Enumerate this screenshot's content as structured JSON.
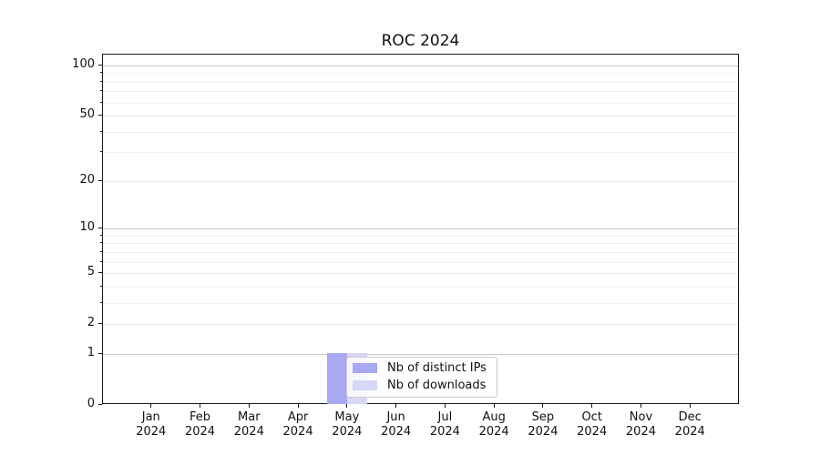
{
  "chart_data": {
    "type": "bar",
    "title": "ROC 2024",
    "categories": [
      "Jan",
      "Feb",
      "Mar",
      "Apr",
      "May",
      "Jun",
      "Jul",
      "Aug",
      "Sep",
      "Oct",
      "Nov",
      "Dec"
    ],
    "x_tick_year": "2024",
    "series": [
      {
        "name": "Nb of distinct IPs",
        "color": "#a9a9f2",
        "values": [
          0,
          0,
          0,
          0,
          1,
          0,
          0,
          0,
          0,
          0,
          0,
          0
        ]
      },
      {
        "name": "Nb of downloads",
        "color": "#d7d7f6",
        "values": [
          0,
          0,
          0,
          0,
          1,
          0,
          0,
          0,
          0,
          0,
          0,
          0
        ]
      }
    ],
    "yscale": "log1p",
    "ylim": [
      0,
      116
    ],
    "y_ticks_labeled": [
      0,
      1,
      2,
      5,
      10,
      20,
      50,
      100
    ],
    "y_ticks_decade": [
      1,
      10,
      100
    ],
    "y_minor_gridlines": [
      3,
      4,
      6,
      7,
      8,
      9,
      30,
      40,
      60,
      70,
      80,
      90
    ],
    "grid": true,
    "legend_position": "inside-bottom-center"
  }
}
